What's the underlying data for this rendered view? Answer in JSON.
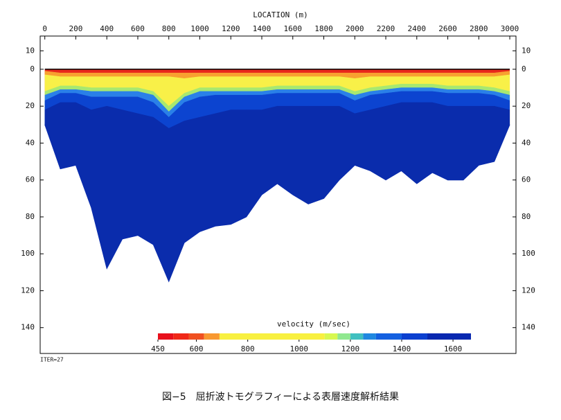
{
  "chart_data": {
    "type": "section",
    "title": "LOCATION (m)",
    "note": "ITER=27",
    "caption": "図−5　屈折波トモグラフィーによる表層速度解析結果",
    "x": [
      0,
      100,
      200,
      300,
      400,
      500,
      600,
      700,
      800,
      900,
      1000,
      1100,
      1200,
      1300,
      1400,
      1500,
      1600,
      1700,
      1800,
      1900,
      2000,
      2100,
      2200,
      2300,
      2400,
      2500,
      2600,
      2700,
      2800,
      2900,
      3000
    ],
    "xlim": [
      -30,
      3040
    ],
    "xticks": [
      0,
      200,
      400,
      600,
      800,
      1000,
      1200,
      1400,
      1600,
      1800,
      2000,
      2200,
      2400,
      2600,
      2800,
      3000
    ],
    "ylim": [
      -18,
      154
    ],
    "yticks": [
      {
        "value": -10,
        "label": "10"
      },
      0,
      20,
      40,
      60,
      80,
      100,
      120,
      140
    ],
    "series": [
      {
        "velocity": 500,
        "color": "#e8281c",
        "values": [
          0,
          0,
          0,
          0,
          0,
          0,
          0,
          0,
          0,
          0,
          0,
          0,
          0,
          0,
          0,
          0,
          0,
          0,
          0,
          0,
          0,
          0,
          0,
          0,
          0,
          0,
          0,
          0,
          0,
          0,
          0
        ]
      },
      {
        "velocity": 650,
        "color": "#f8a030",
        "values": [
          1,
          2,
          2,
          2,
          2,
          2,
          2,
          2,
          2,
          2,
          2,
          2,
          2,
          2,
          2,
          2,
          2,
          2,
          2,
          2,
          2,
          2,
          2,
          2,
          2,
          2,
          2,
          2,
          2,
          2,
          1
        ]
      },
      {
        "velocity": 900,
        "color": "#f8f048",
        "values": [
          3,
          4,
          4,
          4,
          4,
          4,
          4,
          4,
          4,
          5,
          4,
          4,
          4,
          4,
          4,
          4,
          4,
          4,
          4,
          4,
          5,
          4,
          4,
          4,
          4,
          4,
          4,
          4,
          4,
          4,
          3
        ]
      },
      {
        "velocity": 1150,
        "color": "#a8e870",
        "values": [
          12,
          9,
          9,
          10,
          10,
          10,
          10,
          12,
          20,
          13,
          10,
          10,
          10,
          10,
          10,
          9,
          9,
          9,
          9,
          9,
          12,
          10,
          9,
          8,
          8,
          8,
          9,
          9,
          9,
          10,
          12
        ]
      },
      {
        "velocity": 1300,
        "color": "#2a80e8",
        "values": [
          14,
          11,
          11,
          12,
          12,
          12,
          12,
          14,
          23,
          15,
          12,
          12,
          12,
          12,
          12,
          11,
          11,
          11,
          11,
          11,
          14,
          12,
          11,
          10,
          10,
          10,
          11,
          11,
          11,
          12,
          14
        ]
      },
      {
        "velocity": 1500,
        "color": "#0c44d0",
        "values": [
          17,
          13,
          13,
          15,
          15,
          15,
          15,
          18,
          26,
          18,
          15,
          14,
          14,
          14,
          14,
          13,
          13,
          13,
          13,
          13,
          17,
          14,
          13,
          12,
          12,
          12,
          13,
          13,
          13,
          14,
          17
        ]
      },
      {
        "velocity": 1600,
        "color": "#0a2cac",
        "values": [
          22,
          18,
          18,
          22,
          20,
          22,
          24,
          26,
          32,
          28,
          26,
          24,
          22,
          22,
          22,
          20,
          20,
          20,
          20,
          20,
          24,
          22,
          20,
          18,
          18,
          18,
          20,
          20,
          20,
          20,
          22
        ]
      }
    ],
    "bottom": [
      30,
      54,
      52,
      75,
      108,
      92,
      90,
      95,
      115,
      94,
      88,
      85,
      84,
      80,
      68,
      62,
      68,
      73,
      70,
      60,
      52,
      55,
      60,
      55,
      62,
      56,
      60,
      60,
      52,
      50,
      30
    ],
    "colorbar": {
      "label": "velocity (m/sec)",
      "lim": [
        450,
        1670
      ],
      "ticks": [
        450,
        600,
        800,
        1000,
        1200,
        1400,
        1600
      ],
      "bins": [
        450,
        510,
        570,
        630,
        690,
        1100,
        1150,
        1200,
        1250,
        1300,
        1400,
        1500,
        1670
      ],
      "colors": [
        "#e8101c",
        "#f02818",
        "#f05020",
        "#f89830",
        "#f8f040",
        "#d8f850",
        "#90e890",
        "#40c0c0",
        "#2088e0",
        "#1460e0",
        "#0c40d0",
        "#0828b0"
      ]
    }
  }
}
